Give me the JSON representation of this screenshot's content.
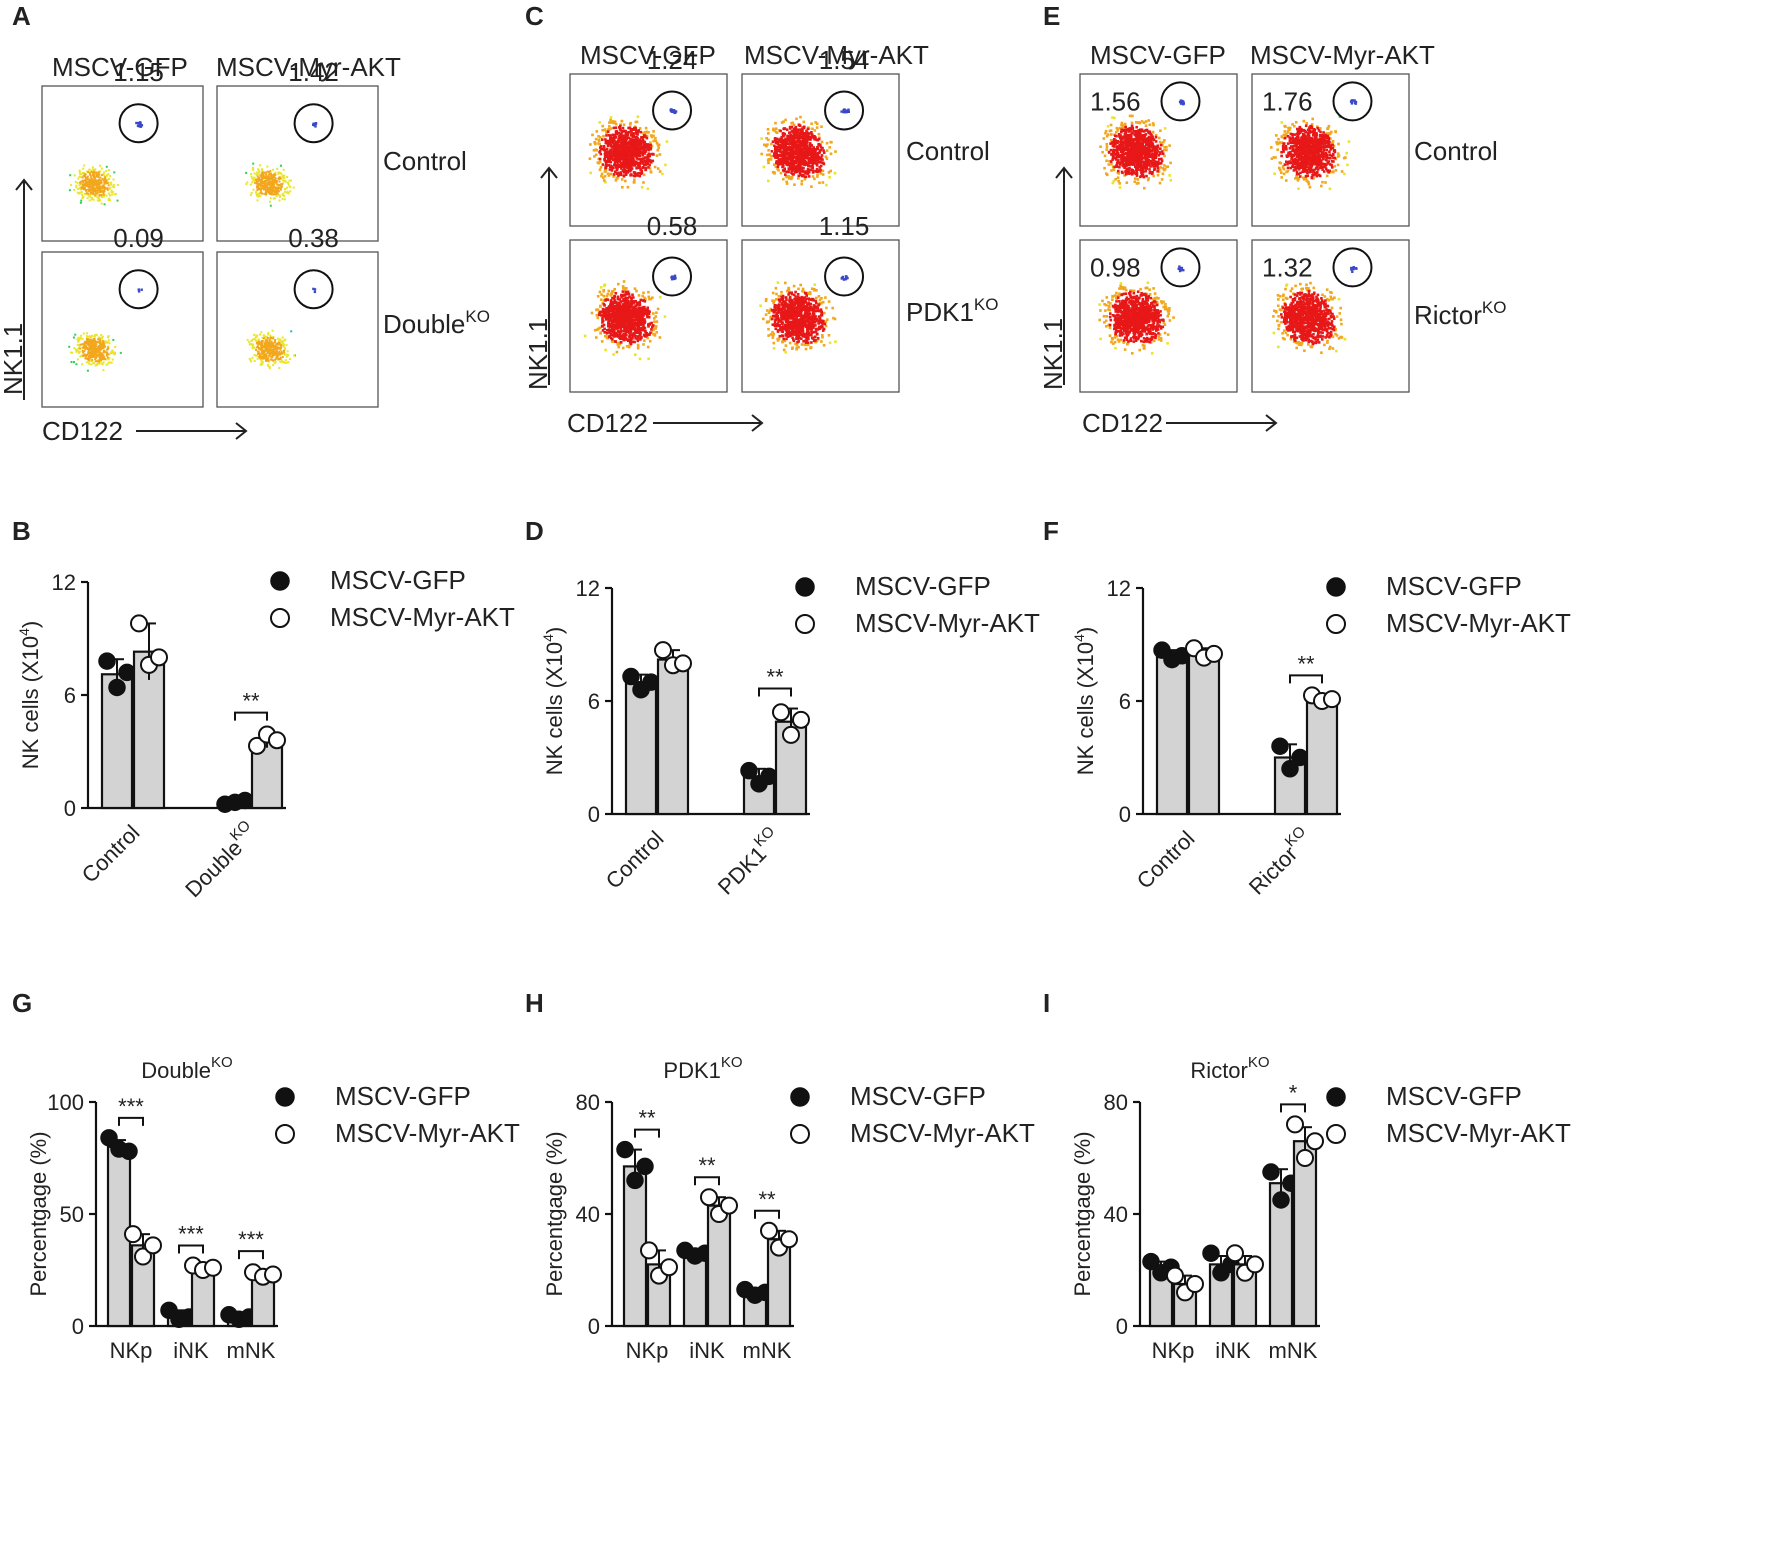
{
  "panel_letters": [
    "A",
    "B",
    "C",
    "D",
    "E",
    "F",
    "G",
    "H",
    "I"
  ],
  "colors": {
    "bar_fill": "#d3d3d3",
    "filled_marker": "#111111",
    "open_marker": "#ffffff",
    "density_high": "#e81818",
    "density_mid": "#27d35a",
    "density_low": "#1f3fd8"
  },
  "facs": [
    {
      "letter": "A",
      "columns": [
        "MSCV-GFP",
        "MSCV-Myr-AKT"
      ],
      "rows": [
        "Control",
        "Double"
      ],
      "row_superscripts": [
        "",
        "KO"
      ],
      "values": [
        [
          "1.15",
          "1.42"
        ],
        [
          "0.09",
          "0.38"
        ]
      ],
      "xlabel": "CD122",
      "ylabel": "NK1.1",
      "style": "sparse"
    },
    {
      "letter": "C",
      "columns": [
        "MSCV-GFP",
        "MSCV-Myr-AKT"
      ],
      "rows": [
        "Control",
        "PDK1"
      ],
      "row_superscripts": [
        "",
        "KO"
      ],
      "values": [
        [
          "1.24",
          "1.54"
        ],
        [
          "0.58",
          "1.15"
        ]
      ],
      "xlabel": "CD122",
      "ylabel": "NK1.1",
      "style": "dense"
    },
    {
      "letter": "E",
      "columns": [
        "MSCV-GFP",
        "MSCV-Myr-AKT"
      ],
      "rows": [
        "Control",
        "Rictor"
      ],
      "row_superscripts": [
        "",
        "KO"
      ],
      "values": [
        [
          "1.56",
          "1.76"
        ],
        [
          "0.98",
          "1.32"
        ]
      ],
      "xlabel": "CD122",
      "ylabel": "NK1.1",
      "style": "dense"
    }
  ],
  "legend": {
    "filled": "MSCV-GFP",
    "open": "MSCV-Myr-AKT"
  },
  "chart_data": [
    {
      "letter": "B",
      "type": "bar",
      "ylabel": "NK cells (X10",
      "ylabel_sup": "4",
      "ylabel_end": ")",
      "ylim": [
        0,
        12
      ],
      "yticks": [
        0,
        6,
        12
      ],
      "categories": [
        {
          "label": "Control",
          "sup": ""
        },
        {
          "label": "Double",
          "sup": "KO"
        }
      ],
      "series": [
        {
          "name": "MSCV-GFP",
          "values": [
            7.1,
            0.3
          ],
          "sd": [
            0.8,
            0.1
          ],
          "points": [
            [
              7.8,
              6.4,
              7.2
            ],
            [
              0.2,
              0.3,
              0.4
            ]
          ]
        },
        {
          "name": "MSCV-Myr-AKT",
          "values": [
            8.3,
            3.6
          ],
          "sd": [
            1.5,
            0.4
          ],
          "points": [
            [
              9.8,
              7.6,
              8.0
            ],
            [
              3.3,
              3.9,
              3.6
            ]
          ]
        }
      ],
      "significance": [
        {
          "category": 1,
          "label": "**"
        }
      ]
    },
    {
      "letter": "D",
      "type": "bar",
      "ylabel": "NK cells (X10",
      "ylabel_sup": "4",
      "ylabel_end": ")",
      "ylim": [
        0,
        12
      ],
      "yticks": [
        0,
        6,
        12
      ],
      "categories": [
        {
          "label": "Control",
          "sup": ""
        },
        {
          "label": "PDK1",
          "sup": "KO"
        }
      ],
      "series": [
        {
          "name": "MSCV-GFP",
          "values": [
            7.0,
            2.0
          ],
          "sd": [
            0.4,
            0.4
          ],
          "points": [
            [
              7.3,
              6.6,
              7.0
            ],
            [
              2.3,
              1.6,
              2.0
            ]
          ]
        },
        {
          "name": "MSCV-Myr-AKT",
          "values": [
            8.2,
            4.9
          ],
          "sd": [
            0.5,
            0.7
          ],
          "points": [
            [
              8.7,
              7.9,
              8.0
            ],
            [
              5.4,
              4.2,
              5.0
            ]
          ]
        }
      ],
      "significance": [
        {
          "category": 1,
          "label": "**"
        }
      ]
    },
    {
      "letter": "F",
      "type": "bar",
      "ylabel": "NK cells (X10",
      "ylabel_sup": "4",
      "ylabel_end": ")",
      "ylim": [
        0,
        12
      ],
      "yticks": [
        0,
        6,
        12
      ],
      "categories": [
        {
          "label": "Control",
          "sup": ""
        },
        {
          "label": "Rictor",
          "sup": "KO"
        }
      ],
      "series": [
        {
          "name": "MSCV-GFP",
          "values": [
            8.4,
            3.0
          ],
          "sd": [
            0.3,
            0.7
          ],
          "points": [
            [
              8.7,
              8.2,
              8.4
            ],
            [
              3.6,
              2.4,
              3.0
            ]
          ]
        },
        {
          "name": "MSCV-Myr-AKT",
          "values": [
            8.5,
            6.1
          ],
          "sd": [
            0.3,
            0.2
          ],
          "points": [
            [
              8.8,
              8.3,
              8.5
            ],
            [
              6.3,
              6.0,
              6.1
            ]
          ]
        }
      ],
      "significance": [
        {
          "category": 1,
          "label": "**"
        }
      ]
    },
    {
      "letter": "G",
      "type": "bar",
      "title": "Double",
      "title_sup": "KO",
      "ylabel": "Percentgage  (%)",
      "ylim": [
        0,
        100
      ],
      "yticks": [
        0,
        50,
        100
      ],
      "categories": [
        {
          "label": "NKp",
          "sup": ""
        },
        {
          "label": "iNK",
          "sup": ""
        },
        {
          "label": "mNK",
          "sup": ""
        }
      ],
      "series": [
        {
          "name": "MSCV-GFP",
          "values": [
            80,
            5,
            4
          ],
          "sd": [
            3,
            2,
            1.5
          ],
          "points": [
            [
              84,
              79,
              78
            ],
            [
              7,
              3,
              4
            ],
            [
              5,
              3,
              4
            ]
          ]
        },
        {
          "name": "MSCV-Myr-AKT",
          "values": [
            36,
            26,
            23
          ],
          "sd": [
            5,
            1,
            1.5
          ],
          "points": [
            [
              41,
              31,
              36
            ],
            [
              27,
              25,
              26
            ],
            [
              24,
              22,
              23
            ]
          ]
        }
      ],
      "significance": [
        {
          "category": 0,
          "label": "***"
        },
        {
          "category": 1,
          "label": "***"
        },
        {
          "category": 2,
          "label": "***"
        }
      ]
    },
    {
      "letter": "H",
      "type": "bar",
      "title": "PDK1",
      "title_sup": "KO",
      "ylabel": "Percentgage  (%)",
      "ylim": [
        0,
        80
      ],
      "yticks": [
        0,
        40,
        80
      ],
      "categories": [
        {
          "label": "NKp",
          "sup": ""
        },
        {
          "label": "iNK",
          "sup": ""
        },
        {
          "label": "mNK",
          "sup": ""
        }
      ],
      "series": [
        {
          "name": "MSCV-GFP",
          "values": [
            57,
            26,
            12
          ],
          "sd": [
            6,
            1.5,
            1
          ],
          "points": [
            [
              63,
              52,
              57
            ],
            [
              27,
              25,
              26
            ],
            [
              13,
              11,
              12
            ]
          ]
        },
        {
          "name": "MSCV-Myr-AKT",
          "values": [
            22,
            43,
            31
          ],
          "sd": [
            5,
            3,
            3
          ],
          "points": [
            [
              27,
              18,
              21
            ],
            [
              46,
              40,
              43
            ],
            [
              34,
              28,
              31
            ]
          ]
        }
      ],
      "significance": [
        {
          "category": 0,
          "label": "**"
        },
        {
          "category": 1,
          "label": "**"
        },
        {
          "category": 2,
          "label": "**"
        }
      ]
    },
    {
      "letter": "I",
      "type": "bar",
      "title": "Rictor",
      "title_sup": "KO",
      "ylabel": "Percentgage  (%)",
      "ylim": [
        0,
        80
      ],
      "yticks": [
        0,
        40,
        80
      ],
      "categories": [
        {
          "label": "NKp",
          "sup": ""
        },
        {
          "label": "iNK",
          "sup": ""
        },
        {
          "label": "mNK",
          "sup": ""
        }
      ],
      "series": [
        {
          "name": "MSCV-GFP",
          "values": [
            21,
            22,
            51
          ],
          "sd": [
            2,
            3,
            5
          ],
          "points": [
            [
              23,
              19,
              21
            ],
            [
              26,
              19,
              22
            ],
            [
              55,
              45,
              51
            ]
          ]
        },
        {
          "name": "MSCV-Myr-AKT",
          "values": [
            15,
            22,
            66
          ],
          "sd": [
            3,
            3,
            5
          ],
          "points": [
            [
              18,
              12,
              15
            ],
            [
              26,
              19,
              22
            ],
            [
              72,
              60,
              66
            ]
          ]
        }
      ],
      "significance": [
        {
          "category": 2,
          "label": "*"
        }
      ]
    }
  ]
}
